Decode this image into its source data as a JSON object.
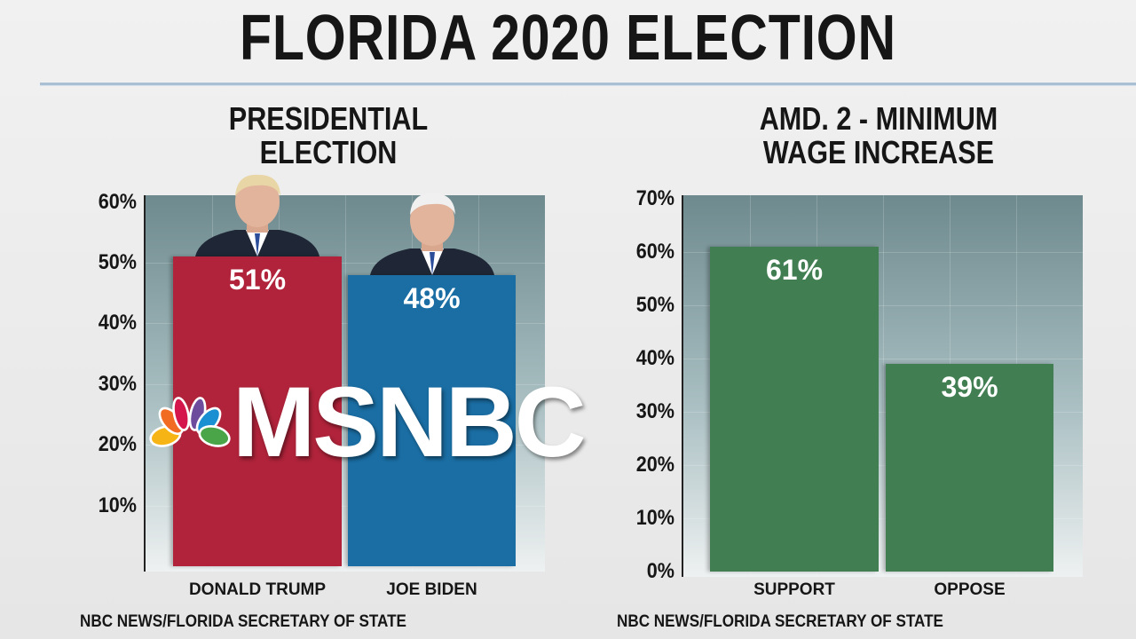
{
  "header": {
    "title": "FLORIDA 2020 ELECTION"
  },
  "chart_data": [
    {
      "type": "bar",
      "title": "PRESIDENTIAL ELECTION",
      "categories": [
        "DONALD TRUMP",
        "JOE BIDEN"
      ],
      "values": [
        51,
        48
      ],
      "data_labels": [
        "51%",
        "48%"
      ],
      "colors": [
        "#b0233a",
        "#1a6ea4"
      ],
      "ylim": [
        0,
        60
      ],
      "yticks": [
        "10%",
        "20%",
        "30%",
        "40%",
        "50%",
        "60%"
      ],
      "grid": true,
      "source": "NBC NEWS/FLORIDA SECRETARY OF STATE"
    },
    {
      "type": "bar",
      "title": "AMD. 2 - MINIMUM WAGE INCREASE",
      "categories": [
        "SUPPORT",
        "OPPOSE"
      ],
      "values": [
        61,
        39
      ],
      "data_labels": [
        "61%",
        "39%"
      ],
      "colors": [
        "#417f52",
        "#417f52"
      ],
      "ylim": [
        0,
        70
      ],
      "yticks": [
        "0%",
        "10%",
        "20%",
        "30%",
        "40%",
        "50%",
        "60%",
        "70%"
      ],
      "grid": true,
      "source": "NBC NEWS/FLORIDA SECRETARY OF STATE"
    }
  ],
  "logo": {
    "text": "MSNBC"
  }
}
